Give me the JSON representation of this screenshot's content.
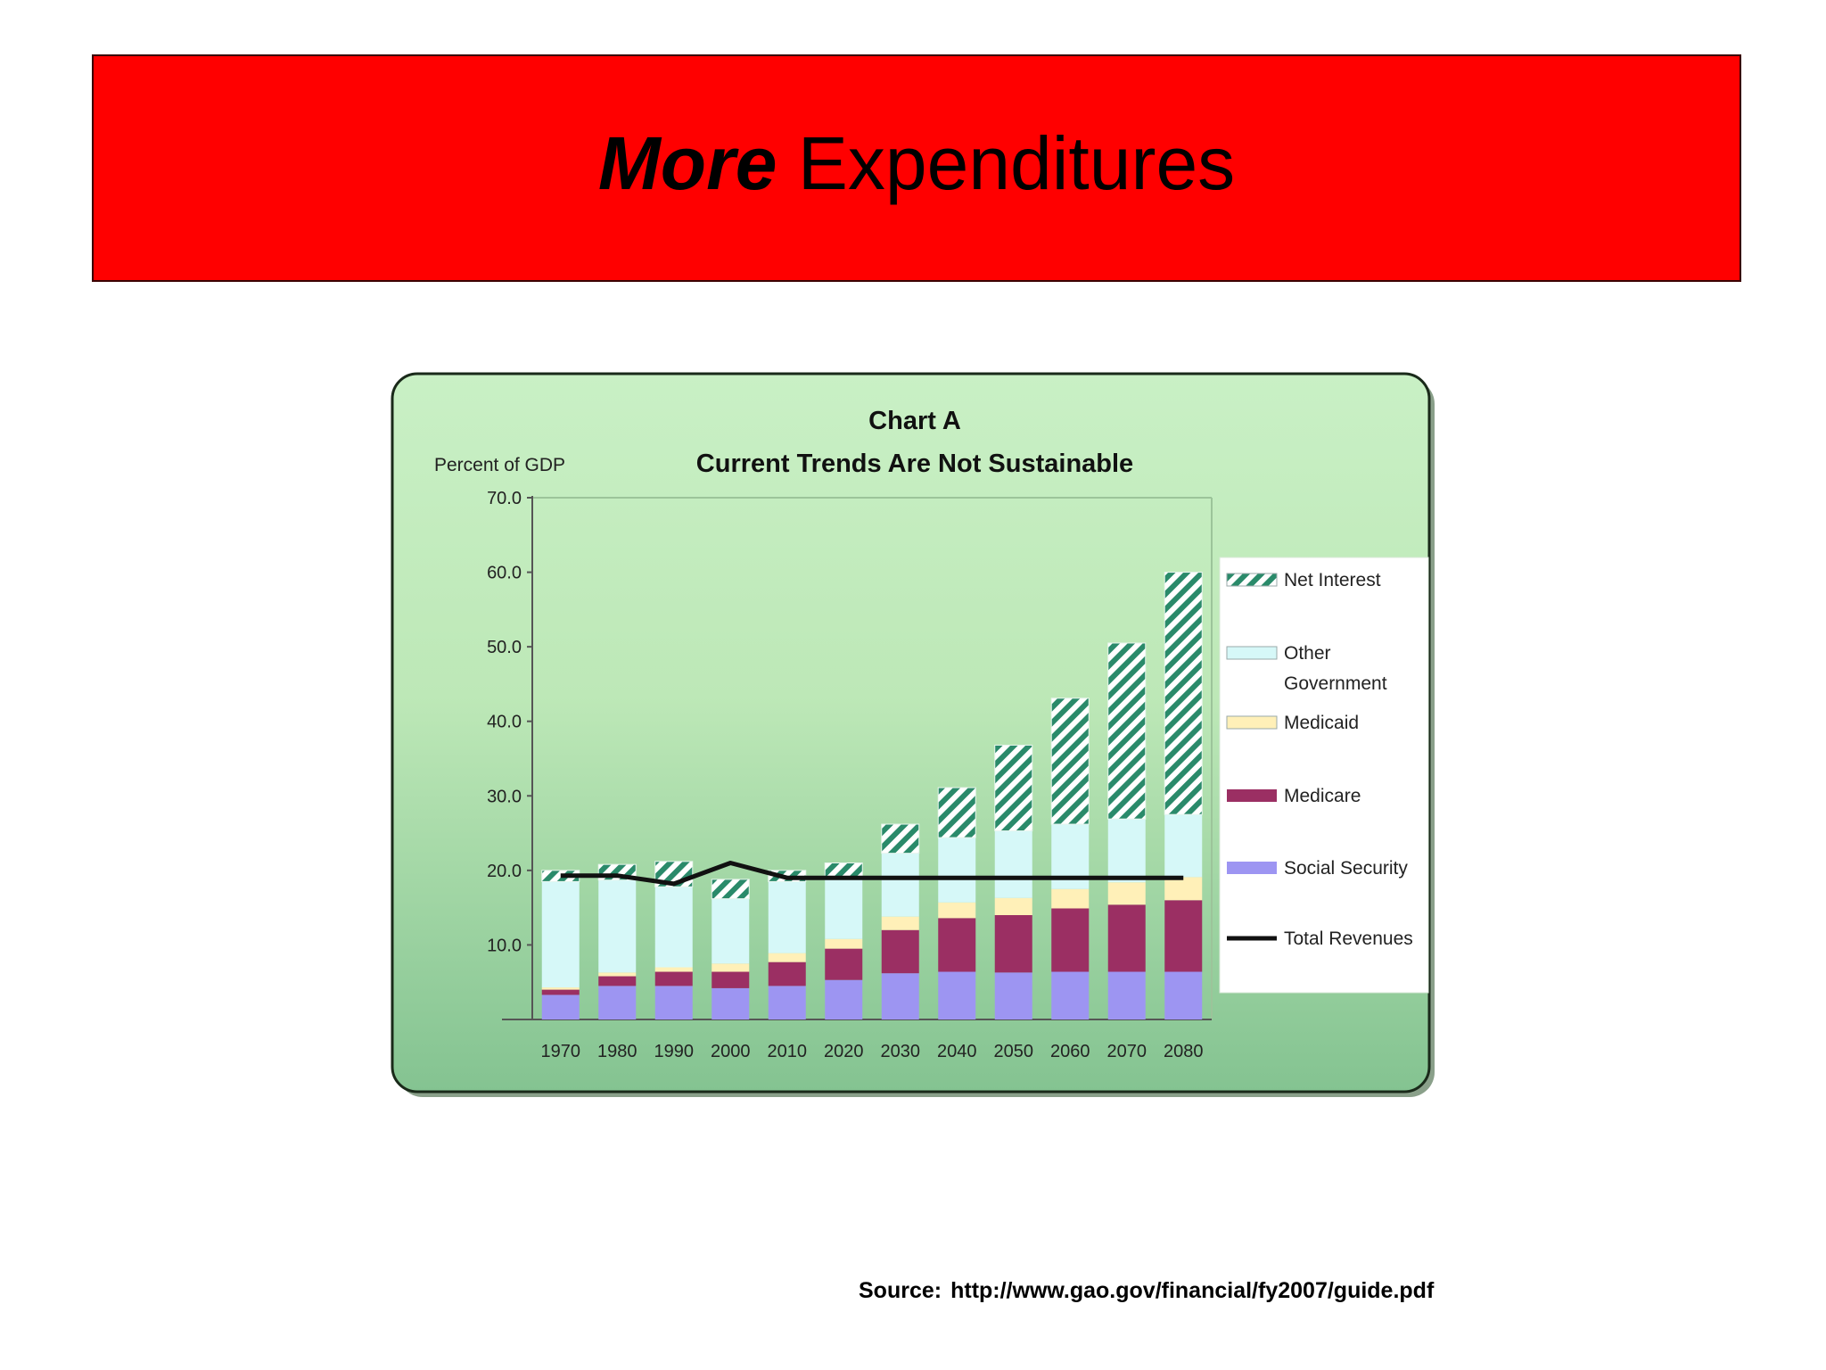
{
  "slide": {
    "title_emphasis": "More",
    "title_rest": "Expenditures",
    "source_label": "Source:",
    "source_url": "http://www.gao.gov/financial/fy2007/guide.pdf"
  },
  "colors": {
    "banner": "#ff0000",
    "social_security": "#9d95f2",
    "medicare": "#9b2f63",
    "medicaid": "#fff0b8",
    "other_government": "#d6f8f8",
    "net_interest_stripe": "#2a8a6a",
    "total_revenues": "#111111"
  },
  "chart_data": {
    "type": "bar",
    "stacked": true,
    "title": "Chart A",
    "subtitle": "Current Trends Are Not Sustainable",
    "ylabel": "Percent of GDP",
    "ylim": [
      0,
      70
    ],
    "yticks": [
      "70.0",
      "60.0",
      "50.0",
      "40.0",
      "30.0",
      "20.0",
      "10.0"
    ],
    "yticks_values": [
      70,
      60,
      50,
      40,
      30,
      20,
      10
    ],
    "grid": false,
    "legend_position": "right",
    "categories": [
      "1970",
      "1980",
      "1990",
      "2000",
      "2010",
      "2020",
      "2030",
      "2040",
      "2050",
      "2060",
      "2070",
      "2080"
    ],
    "series": [
      {
        "name": "Social Security",
        "values": [
          3.3,
          4.5,
          4.5,
          4.2,
          4.5,
          5.3,
          6.2,
          6.4,
          6.3,
          6.4,
          6.4,
          6.4
        ]
      },
      {
        "name": "Medicare",
        "values": [
          0.7,
          1.3,
          1.9,
          2.2,
          3.2,
          4.2,
          5.8,
          7.2,
          7.7,
          8.5,
          9.0,
          9.6
        ]
      },
      {
        "name": "Medicaid",
        "values": [
          0.3,
          0.5,
          0.6,
          1.1,
          1.2,
          1.3,
          1.8,
          2.1,
          2.3,
          2.6,
          3.0,
          3.1
        ]
      },
      {
        "name": "Other Government",
        "values": [
          14.2,
          12.4,
          10.8,
          8.7,
          9.6,
          8.2,
          8.5,
          8.7,
          9.0,
          8.7,
          8.5,
          8.4
        ]
      },
      {
        "name": "Net Interest",
        "values": [
          1.5,
          2.1,
          3.4,
          2.6,
          1.5,
          2.0,
          3.9,
          6.7,
          11.5,
          16.9,
          23.6,
          32.5
        ]
      }
    ],
    "line": {
      "name": "Total Revenues",
      "values": [
        19.3,
        19.3,
        18.2,
        21.0,
        19.0,
        19.0,
        19.0,
        19.0,
        19.0,
        19.0,
        19.0,
        19.0
      ]
    },
    "legend": [
      {
        "label_lines": [
          "Net Interest"
        ],
        "series": "Net Interest"
      },
      {
        "label_lines": [
          "Other",
          "Government"
        ],
        "series": "Other Government"
      },
      {
        "label_lines": [
          "Medicaid"
        ],
        "series": "Medicaid"
      },
      {
        "label_lines": [
          "Medicare"
        ],
        "series": "Medicare"
      },
      {
        "label_lines": [
          "Social Security"
        ],
        "series": "Social Security"
      },
      {
        "label_lines": [
          "Total Revenues"
        ],
        "series": "Total Revenues"
      }
    ]
  }
}
